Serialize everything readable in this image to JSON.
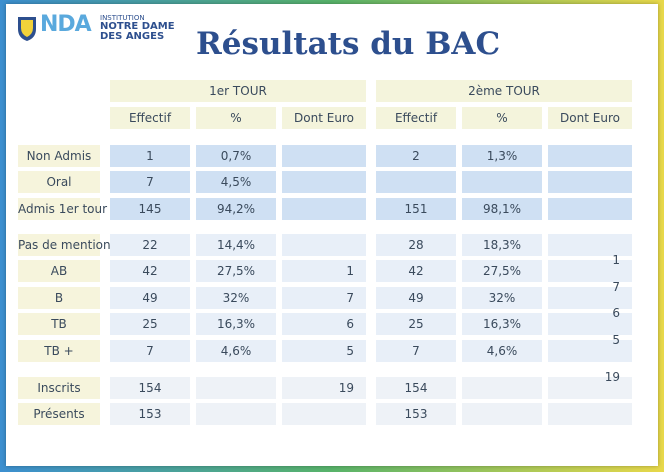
{
  "header": {
    "logo": "NDA",
    "institution": "INSTITUTION",
    "name_line1": "NOTRE DAME",
    "name_line2": "DES ANGES"
  },
  "title": "Résultats du BAC",
  "table": {
    "groups": [
      "1er TOUR",
      "2ème TOUR"
    ],
    "columns": [
      "Effectif",
      "%",
      "Dont Euro",
      "Effectif",
      "%",
      "Dont Euro"
    ],
    "sections": [
      [
        {
          "label": "Non Admis",
          "cells": [
            1,
            "0,7%",
            null,
            2,
            "1,3%",
            null
          ]
        },
        {
          "label": "Oral",
          "cells": [
            7,
            "4,5%",
            null,
            null,
            null,
            null
          ]
        },
        {
          "label": "Admis 1er tour",
          "cells": [
            145,
            "94,2%",
            null,
            151,
            "98,1%",
            null
          ]
        }
      ],
      [
        {
          "label": "Pas de mention",
          "cells": [
            22,
            "14,4%",
            null,
            28,
            "18,3%",
            null
          ]
        },
        {
          "label": "AB",
          "cells": [
            42,
            "27,5%",
            1,
            42,
            "27,5%",
            1
          ]
        },
        {
          "label": "B",
          "cells": [
            49,
            "32%",
            7,
            49,
            "32%",
            7
          ]
        },
        {
          "label": "TB",
          "cells": [
            25,
            "16,3%",
            6,
            25,
            "16,3%",
            6
          ]
        },
        {
          "label": "TB +",
          "cells": [
            7,
            "4,6%",
            5,
            7,
            "4,6%",
            5
          ]
        }
      ],
      [
        {
          "label": "Inscrits",
          "cells": [
            154,
            null,
            19,
            154,
            null,
            19
          ]
        },
        {
          "label": "Présents",
          "cells": [
            153,
            null,
            null,
            153,
            null,
            null
          ]
        }
      ]
    ]
  }
}
